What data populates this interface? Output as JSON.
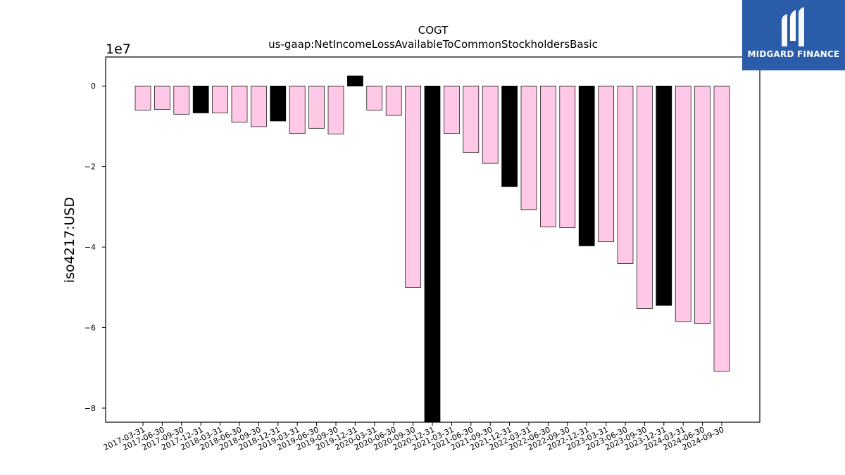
{
  "logo": {
    "text": "MIDGARD FINANCE",
    "bg": "#2a5caa"
  },
  "chart_data": {
    "type": "bar",
    "title": "COGT",
    "subtitle": "us-gaap:NetIncomeLossAvailableToCommonStockholdersBasic",
    "ylabel": "iso4217:USD",
    "xlabel": "",
    "y_scale_label": "1e7",
    "ylim": [
      -8.35,
      0.72
    ],
    "yticks": [
      0,
      -2,
      -4,
      -6,
      -8
    ],
    "grid": false,
    "colors": {
      "quarterly": "#ffc8e6",
      "annual": "#000000"
    },
    "categories": [
      "2017-03-31",
      "2017-06-30",
      "2017-09-30",
      "2017-12-31",
      "2018-03-31",
      "2018-06-30",
      "2018-09-30",
      "2018-12-31",
      "2019-03-31",
      "2019-06-30",
      "2019-09-30",
      "2019-12-31",
      "2020-03-31",
      "2020-06-30",
      "2020-09-30",
      "2020-12-31",
      "2021-03-31",
      "2021-06-30",
      "2021-09-30",
      "2021-12-31",
      "2022-03-31",
      "2022-06-30",
      "2022-09-30",
      "2022-12-31",
      "2023-03-31",
      "2023-06-30",
      "2023-09-30",
      "2023-12-31",
      "2024-03-31",
      "2024-06-30",
      "2024-09-30"
    ],
    "values": [
      -0.6,
      -0.58,
      -0.7,
      -0.67,
      -0.67,
      -0.9,
      -1.01,
      -0.87,
      -1.18,
      -1.05,
      -1.19,
      0.25,
      -0.6,
      -0.73,
      -5.0,
      -8.35,
      -1.18,
      -1.65,
      -1.92,
      -2.5,
      -3.07,
      -3.5,
      -3.52,
      -3.97,
      -3.87,
      -4.41,
      -5.53,
      -5.45,
      -5.85,
      -5.9,
      -7.08
    ],
    "bar_colors": [
      "#ffc8e6",
      "#ffc8e6",
      "#ffc8e6",
      "#000000",
      "#ffc8e6",
      "#ffc8e6",
      "#ffc8e6",
      "#000000",
      "#ffc8e6",
      "#ffc8e6",
      "#ffc8e6",
      "#000000",
      "#ffc8e6",
      "#ffc8e6",
      "#ffc8e6",
      "#000000",
      "#ffc8e6",
      "#ffc8e6",
      "#ffc8e6",
      "#000000",
      "#ffc8e6",
      "#ffc8e6",
      "#ffc8e6",
      "#000000",
      "#ffc8e6",
      "#ffc8e6",
      "#ffc8e6",
      "#000000",
      "#ffc8e6",
      "#ffc8e6",
      "#ffc8e6"
    ]
  }
}
